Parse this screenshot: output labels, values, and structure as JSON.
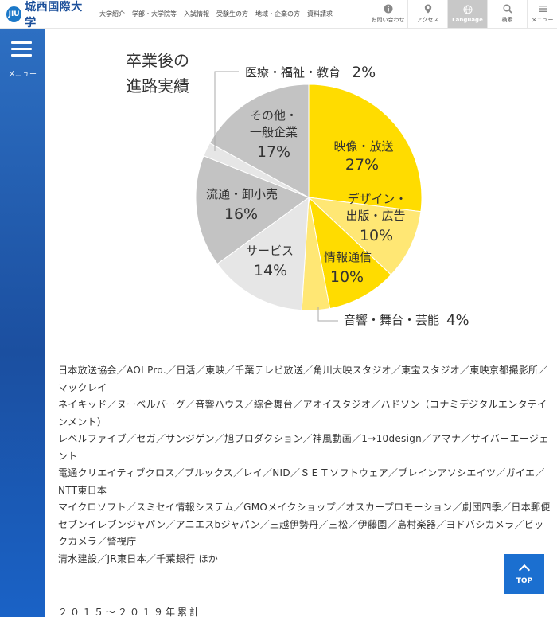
{
  "header": {
    "logo_text": "城西国際大学",
    "logo_mark": "JIU",
    "nav": [
      "大学紹介",
      "学部・大学院等",
      "入試情報",
      "受験生の方",
      "地域・企業の方",
      "資料請求"
    ],
    "util": [
      {
        "label": "お問い合わせ",
        "icon": "info-icon"
      },
      {
        "label": "アクセス",
        "icon": "map-pin-icon"
      },
      {
        "label": "Language",
        "icon": "globe-icon"
      },
      {
        "label": "検索",
        "icon": "search-icon"
      },
      {
        "label": "メニュー",
        "icon": "menu-icon"
      }
    ]
  },
  "sidebar": {
    "menu_label": "メニュー"
  },
  "chart_title_lines": [
    "卒業後の",
    "進路実績"
  ],
  "chart_data": {
    "type": "pie",
    "title": "卒業後の進路実績",
    "slices": [
      {
        "label": "映像・放送",
        "value": 27,
        "color": "#ffdc00"
      },
      {
        "label": "デザイン・出版・広告",
        "value": 10,
        "color": "#ffe774"
      },
      {
        "label": "情報通信",
        "value": 10,
        "color": "#ffdc00"
      },
      {
        "label": "音響・舞台・芸能",
        "value": 4,
        "color": "#ffe774"
      },
      {
        "label": "サービス",
        "value": 14,
        "color": "#e6e6e6"
      },
      {
        "label": "流通・卸小売",
        "value": 16,
        "color": "#c3c3c3"
      },
      {
        "label": "医療・福祉・教育",
        "value": 2,
        "color": "#e6e6e6"
      },
      {
        "label": "その他・一般企業",
        "value": 17,
        "color": "#c3c3c3"
      }
    ],
    "label_text": {
      "eizo": [
        "映像・放送",
        "27%"
      ],
      "design": [
        "デザイン・",
        "出版・広告",
        "10%"
      ],
      "joho": [
        "情報通信",
        "10%"
      ],
      "onkyo": [
        "音響・舞台・芸能",
        "4%"
      ],
      "service": [
        "サービス",
        "14%"
      ],
      "ryutsu": [
        "流通・卸小売",
        "16%"
      ],
      "iryo": [
        "医療・福祉・教育",
        "2%"
      ],
      "sonota": [
        "その他・",
        "一般企業",
        "17%"
      ]
    }
  },
  "companies": [
    "日本放送協会／AOI Pro.／日活／東映／千葉テレビ放送／角川大映スタジオ／東宝スタジオ／東映京都撮影所／マックレイ",
    "ネイキッド／ヌーベルバーグ／音響ハウス／綜合舞台／アオイスタジオ／ハドソン（コナミデジタルエンタテインメント）",
    "レベルファイブ／セガ／サンジゲン／旭プロダクション／神風動画／1→10design／アマナ／サイバーエージェント",
    "電通クリエイティブクロス／ブルックス／レイ／NID／ＳＥＴソフトウェア／ブレインアソシエイツ／ガイエ／NTT東日本",
    "マイクロソフト／スミセイ情報システム／GMOメイクショップ／オスカープロモーション／劇団四季／日本郵便",
    "セブンイレブンジャパン／アニエスbジャパン／三越伊勢丹／三松／伊藤園／島村楽器／ヨドバシカメラ／ビックカメラ／警視庁",
    "清水建設／JR東日本／千葉銀行 ほか"
  ],
  "footnote": "２０１５～２０１９年累計",
  "top_button": {
    "label": "TOP"
  }
}
